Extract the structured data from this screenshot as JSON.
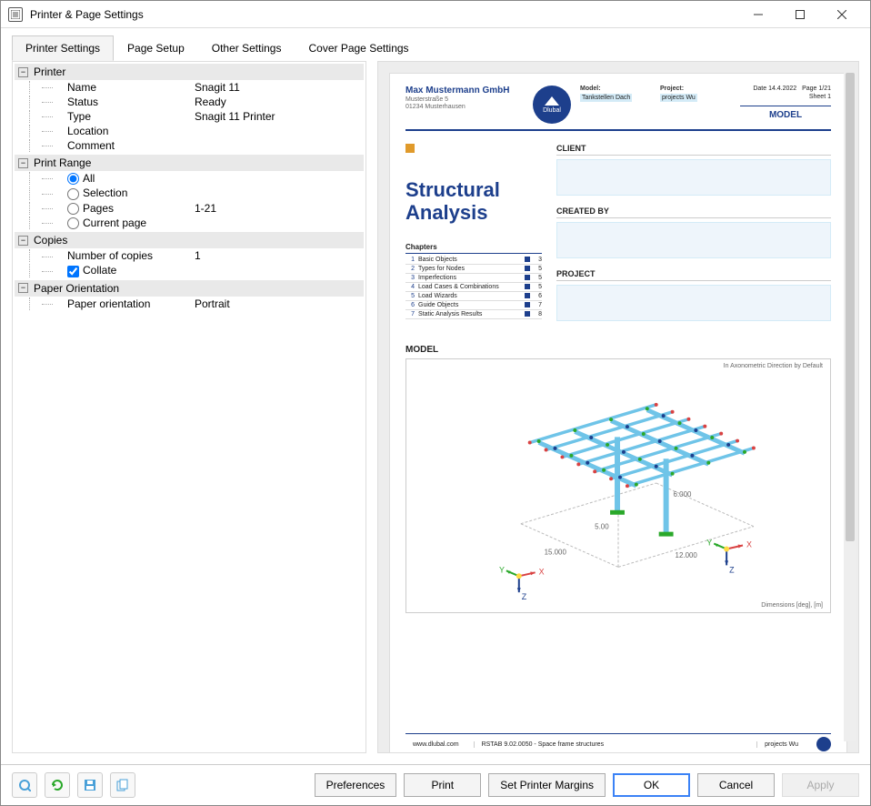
{
  "window": {
    "title": "Printer & Page Settings"
  },
  "tabs": {
    "t0": "Printer Settings",
    "t1": "Page Setup",
    "t2": "Other Settings",
    "t3": "Cover Page Settings"
  },
  "printer": {
    "header": "Printer",
    "name_label": "Name",
    "name_value": "Snagit 11",
    "status_label": "Status",
    "status_value": "Ready",
    "type_label": "Type",
    "type_value": "Snagit 11 Printer",
    "location_label": "Location",
    "location_value": "",
    "comment_label": "Comment",
    "comment_value": ""
  },
  "print_range": {
    "header": "Print Range",
    "all": "All",
    "selection": "Selection",
    "pages": "Pages",
    "pages_value": "1-21",
    "current": "Current page",
    "selected": "all"
  },
  "copies": {
    "header": "Copies",
    "num_label": "Number of copies",
    "num_value": "1",
    "collate": "Collate",
    "collate_checked": true
  },
  "orientation": {
    "header": "Paper Orientation",
    "label": "Paper orientation",
    "value": "Portrait"
  },
  "buttons": {
    "preferences": "Preferences",
    "print": "Print",
    "margins": "Set Printer Margins",
    "ok": "OK",
    "cancel": "Cancel",
    "apply": "Apply"
  },
  "preview": {
    "company": "Max Mustermann GmbH",
    "addr1": "Musterstraße 5",
    "addr2": "01234 Musterhausen",
    "logo_text": "Dlubal",
    "meta": {
      "model_label": "Model:",
      "model_value": "Tankstellen Dach",
      "project_label": "Project:",
      "project_value": "projects Wu",
      "date_label": "Date",
      "date_value": "14.4.2022",
      "page_label": "Page",
      "page_value": "1/21",
      "sheet_label": "Sheet",
      "sheet_value": "1",
      "modelbox": "MODEL"
    },
    "title": "Structural Analysis",
    "chapters_h": "Chapters",
    "chapters": [
      {
        "n": "1",
        "t": "Basic Objects",
        "p": "3"
      },
      {
        "n": "2",
        "t": "Types for Nodes",
        "p": "5"
      },
      {
        "n": "3",
        "t": "Imperfections",
        "p": "5"
      },
      {
        "n": "4",
        "t": "Load Cases & Combinations",
        "p": "5"
      },
      {
        "n": "5",
        "t": "Load Wizards",
        "p": "6"
      },
      {
        "n": "6",
        "t": "Guide Objects",
        "p": "7"
      },
      {
        "n": "7",
        "t": "Static Analysis Results",
        "p": "8"
      }
    ],
    "sections": {
      "client": "CLIENT",
      "created": "CREATED BY",
      "project": "PROJECT"
    },
    "model_h": "MODEL",
    "model_caption": "In Axonometric Direction by Default",
    "model_dimensions": "Dimensions [deg], [m]",
    "struct": {
      "dims": {
        "x": "15.000",
        "y": "12.000",
        "z": "5.00",
        "h": "6.000"
      },
      "beam_color": "#6fc4e8",
      "node_colors": [
        "#d94242",
        "#2aa82a",
        "#1d3f8c"
      ],
      "column_base_color": "#2aa82a",
      "axis_colors": {
        "x": "#d94242",
        "y": "#2aa82a",
        "z": "#1d3f8c"
      }
    },
    "footer": {
      "url": "www.dlubal.com",
      "app": "RSTAB 9.02.0050 - Space frame structures",
      "proj": "projects Wu"
    }
  }
}
